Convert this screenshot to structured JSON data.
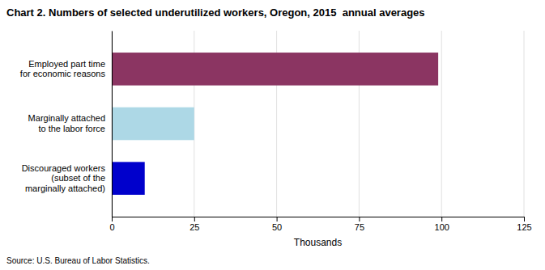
{
  "chart_data": {
    "type": "bar",
    "orientation": "horizontal",
    "title": "Chart 2. Numbers of selected underutilized workers, Oregon, 2015  annual averages",
    "categories": [
      "Employed part time\nfor economic reasons",
      "Marginally attached\nto the labor force",
      "Discouraged workers\n(subset of the\nmarginally attached)"
    ],
    "values": [
      99,
      25,
      10
    ],
    "colors": [
      "#8b3562",
      "#add8e6",
      "#0000cc"
    ],
    "xlabel": "Thousands",
    "xlim": [
      0,
      125
    ],
    "xticks": [
      0,
      25,
      50,
      75,
      100,
      125
    ],
    "grid": true,
    "annotations": [
      "Source: U.S. Bureau of Labor Statistics."
    ]
  }
}
